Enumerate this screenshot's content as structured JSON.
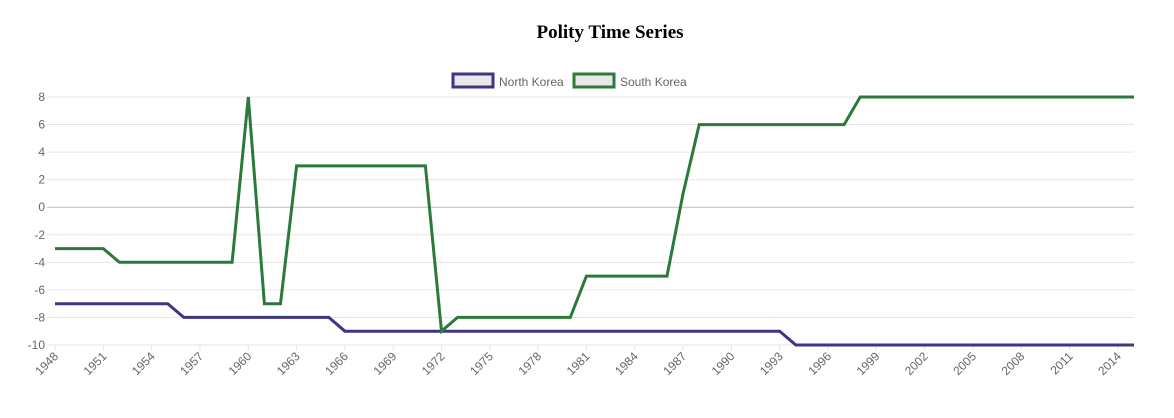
{
  "chart_data": {
    "type": "line",
    "title": "Polity Time Series",
    "xlabel": "",
    "ylabel": "",
    "ylim": [
      -10,
      8
    ],
    "grid": true,
    "legend_position": "top-center",
    "x_tick_labels": [
      "1948",
      "1951",
      "1954",
      "1957",
      "1960",
      "1963",
      "1966",
      "1969",
      "1972",
      "1975",
      "1978",
      "1981",
      "1984",
      "1987",
      "1990",
      "1993",
      "1996",
      "1999",
      "2002",
      "2005",
      "2008",
      "2011",
      "2014"
    ],
    "y_tick_labels": [
      "8",
      "6",
      "4",
      "2",
      "0",
      "-2",
      "-4",
      "-6",
      "-8",
      "-10"
    ],
    "x": [
      1948,
      1949,
      1950,
      1951,
      1952,
      1953,
      1954,
      1955,
      1956,
      1957,
      1958,
      1959,
      1960,
      1961,
      1962,
      1963,
      1964,
      1965,
      1966,
      1967,
      1968,
      1969,
      1970,
      1971,
      1972,
      1973,
      1974,
      1975,
      1976,
      1977,
      1978,
      1979,
      1980,
      1981,
      1982,
      1983,
      1984,
      1985,
      1986,
      1987,
      1988,
      1989,
      1990,
      1991,
      1992,
      1993,
      1994,
      1995,
      1996,
      1997,
      1998,
      1999,
      2000,
      2001,
      2002,
      2003,
      2004,
      2005,
      2006,
      2007,
      2008,
      2009,
      2010,
      2011,
      2012,
      2013,
      2014,
      2015
    ],
    "series": [
      {
        "name": "North Korea",
        "color": "#3f3585",
        "values": [
          -7,
          -7,
          -7,
          -7,
          -7,
          -7,
          -7,
          -7,
          -8,
          -8,
          -8,
          -8,
          -8,
          -8,
          -8,
          -8,
          -8,
          -8,
          -9,
          -9,
          -9,
          -9,
          -9,
          -9,
          -9,
          -9,
          -9,
          -9,
          -9,
          -9,
          -9,
          -9,
          -9,
          -9,
          -9,
          -9,
          -9,
          -9,
          -9,
          -9,
          -9,
          -9,
          -9,
          -9,
          -9,
          -9,
          -10,
          -10,
          -10,
          -10,
          -10,
          -10,
          -10,
          -10,
          -10,
          -10,
          -10,
          -10,
          -10,
          -10,
          -10,
          -10,
          -10,
          -10,
          -10,
          -10,
          -10,
          -10
        ]
      },
      {
        "name": "South Korea",
        "color": "#2a7a3b",
        "values": [
          -3,
          -3,
          -3,
          -3,
          -4,
          -4,
          -4,
          -4,
          -4,
          -4,
          -4,
          -4,
          8,
          -7,
          -7,
          3,
          3,
          3,
          3,
          3,
          3,
          3,
          3,
          3,
          -9,
          -8,
          -8,
          -8,
          -8,
          -8,
          -8,
          -8,
          -8,
          -5,
          -5,
          -5,
          -5,
          -5,
          -5,
          1,
          6,
          6,
          6,
          6,
          6,
          6,
          6,
          6,
          6,
          6,
          8,
          8,
          8,
          8,
          8,
          8,
          8,
          8,
          8,
          8,
          8,
          8,
          8,
          8,
          8,
          8,
          8,
          8
        ]
      }
    ]
  },
  "colors": {
    "grid": "#e6e6e6",
    "zero_line": "#bdbdbd",
    "legend_box_fill": "#e8e8e8"
  }
}
